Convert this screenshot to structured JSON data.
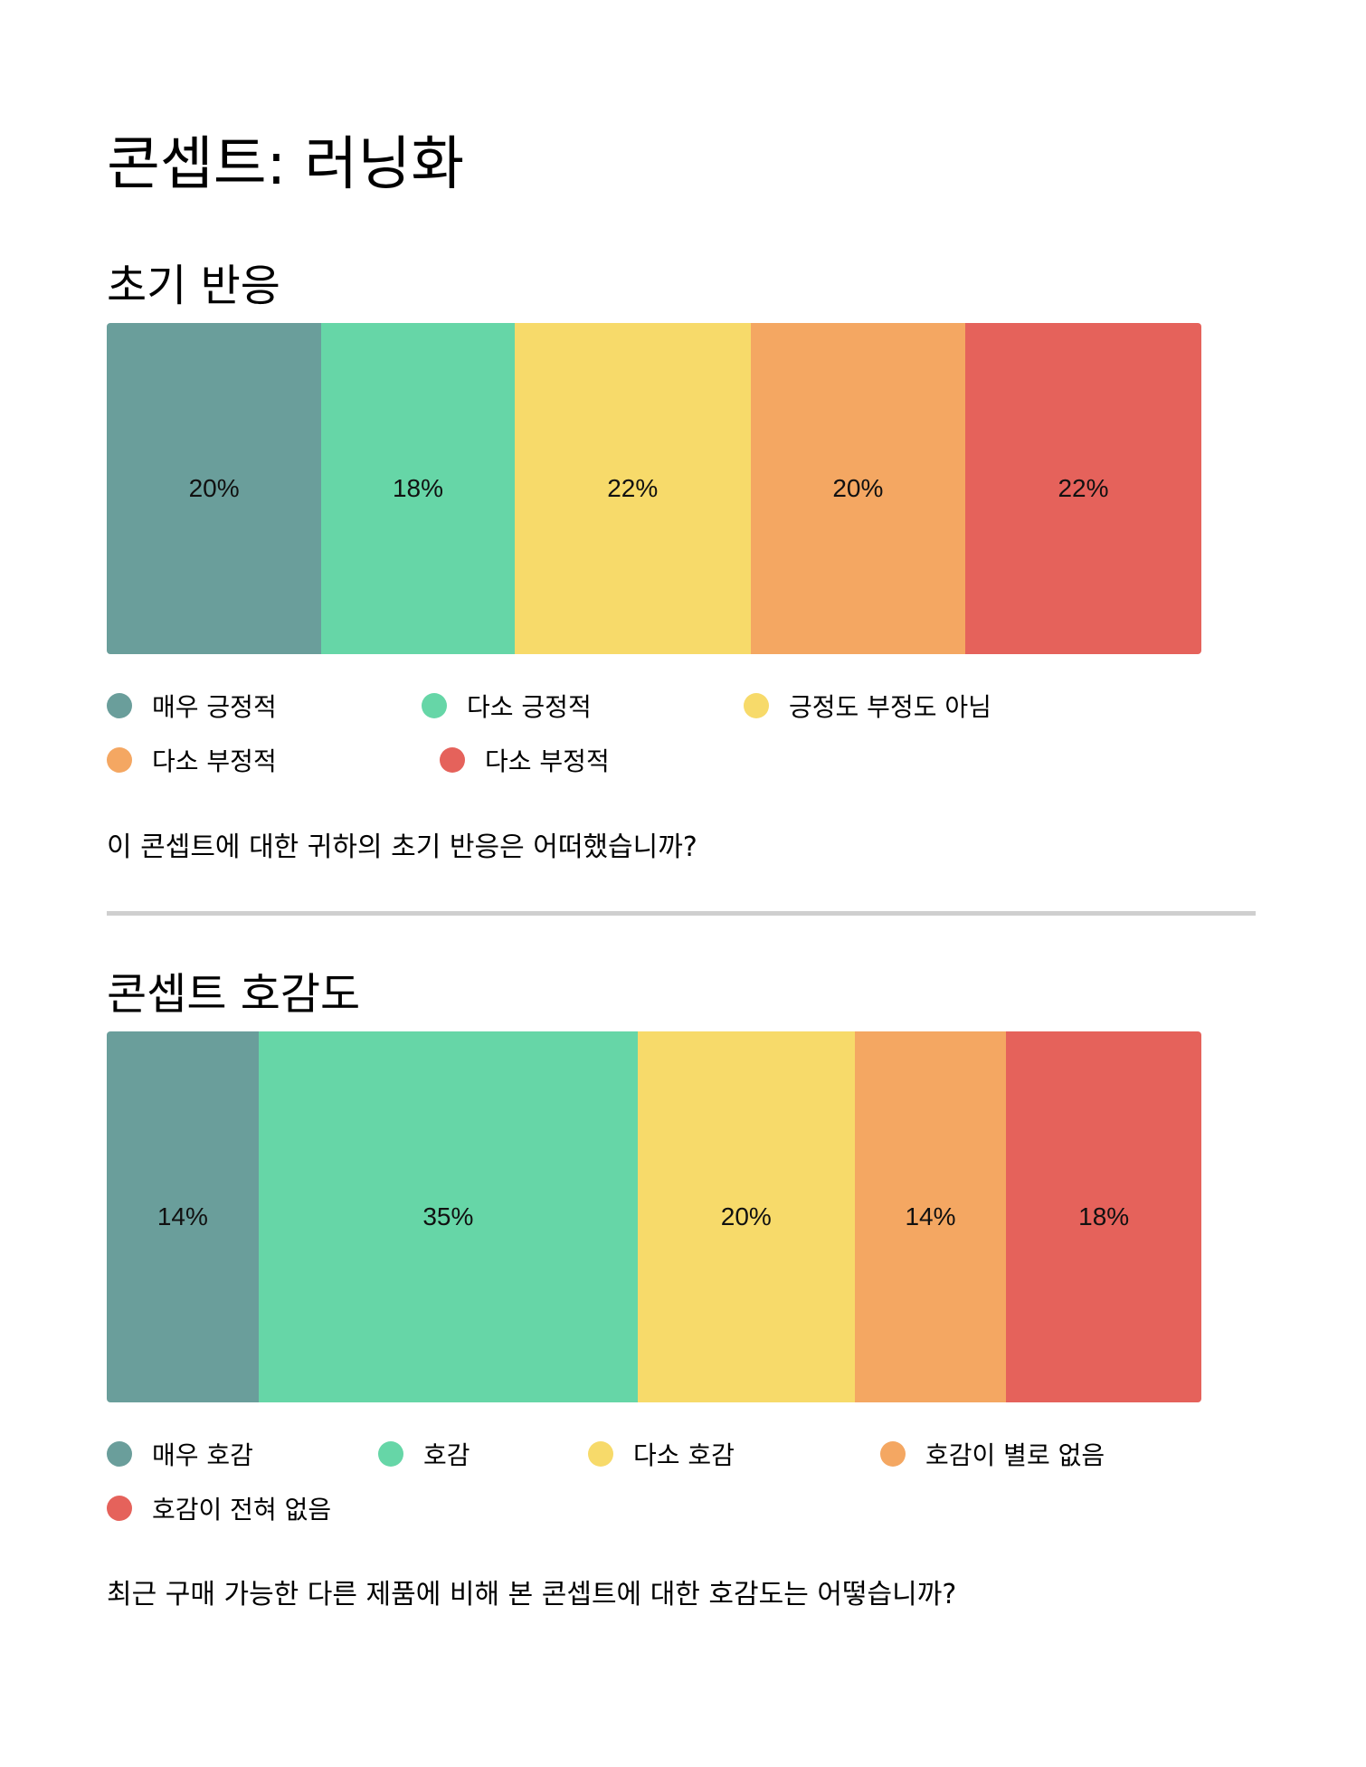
{
  "page": {
    "title": "콘셉트: 러닝화"
  },
  "colors": [
    "#6a9e9b",
    "#66d6a7",
    "#f7da6a",
    "#f4a762",
    "#e5625b"
  ],
  "chart_data": [
    {
      "type": "bar",
      "stacked": true,
      "orientation": "horizontal",
      "title": "초기 반응",
      "question": "이 콘셉트에 대한 귀하의 초기 반응은 어떠했습니까?",
      "legend_position": "bottom",
      "categories": [
        "매우 긍정적",
        "다소 긍정적",
        "긍정도 부정도 아님",
        "다소 부정적",
        "다소 부정적"
      ],
      "values": [
        20,
        18,
        22,
        20,
        22
      ],
      "labels": [
        "20%",
        "18%",
        "22%",
        "20%",
        "22%"
      ],
      "unit": "%"
    },
    {
      "type": "bar",
      "stacked": true,
      "orientation": "horizontal",
      "title": "콘셉트 호감도",
      "question": "최근 구매 가능한 다른 제품에 비해 본 콘셉트에 대한 호감도는 어떻습니까?",
      "legend_position": "bottom",
      "categories": [
        "매우 호감",
        "호감",
        "다소 호감",
        "호감이 별로 없음",
        "호감이 전혀 없음"
      ],
      "values": [
        14,
        35,
        20,
        14,
        18
      ],
      "labels": [
        "14%",
        "35%",
        "20%",
        "14%",
        "18%"
      ],
      "unit": "%"
    }
  ]
}
